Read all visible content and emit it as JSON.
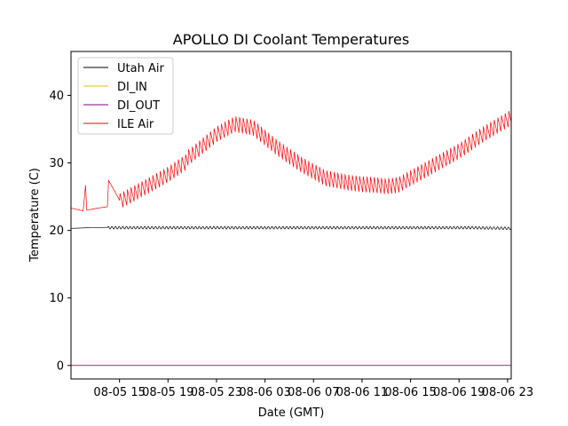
{
  "chart_data": {
    "type": "line",
    "title": "APOLLO DI Coolant Temperatures",
    "xlabel": "Date (GMT)",
    "ylabel": "Temperature (C)",
    "x_unit": "hours since 08-05 11:00 GMT",
    "xlim": [
      0,
      36.3
    ],
    "ylim": [
      -2,
      46.5
    ],
    "grid": false,
    "legend_position": "top-left",
    "x_ticks": [
      {
        "x": 4,
        "label": "08-05 15"
      },
      {
        "x": 8,
        "label": "08-05 19"
      },
      {
        "x": 12,
        "label": "08-05 23"
      },
      {
        "x": 16,
        "label": "08-06 03"
      },
      {
        "x": 20,
        "label": "08-06 07"
      },
      {
        "x": 24,
        "label": "08-06 11"
      },
      {
        "x": 28,
        "label": "08-06 15"
      },
      {
        "x": 32,
        "label": "08-06 19"
      },
      {
        "x": 36,
        "label": "08-06 23"
      }
    ],
    "y_ticks": [
      {
        "y": 0,
        "label": "0"
      },
      {
        "y": 10,
        "label": "10"
      },
      {
        "y": 20,
        "label": "20"
      },
      {
        "y": 30,
        "label": "30"
      },
      {
        "y": 40,
        "label": "40"
      }
    ],
    "series": [
      {
        "name": "Utah Air",
        "color": "#000000",
        "x": [
          0,
          1.5,
          3,
          5,
          7,
          9,
          12,
          15,
          18,
          21,
          24,
          27,
          30,
          33,
          36.3
        ],
        "values": [
          20.3,
          20.4,
          20.4,
          20.4,
          20.4,
          20.4,
          20.4,
          20.4,
          20.4,
          20.4,
          20.4,
          20.4,
          20.4,
          20.4,
          20.3
        ],
        "oscillation": {
          "start_x": 3,
          "period_hours": 0.3,
          "amplitude": 0.4
        }
      },
      {
        "name": "DI_IN",
        "color": "#e6c200",
        "x": [
          0,
          36.3
        ],
        "values": [
          0,
          0
        ]
      },
      {
        "name": "DI_OUT",
        "color": "#800080",
        "x": [
          0,
          36.3
        ],
        "values": [
          0,
          0
        ]
      },
      {
        "name": "ILE Air",
        "color": "#ff0000",
        "x": [
          0,
          1,
          1.2,
          1.3,
          2.2,
          3,
          3.1,
          4,
          6,
          8,
          10,
          12,
          13.5,
          15,
          17,
          19,
          21,
          23,
          24,
          25,
          26,
          27,
          28,
          30,
          32,
          34,
          36.3
        ],
        "values": [
          23.3,
          22.9,
          26.7,
          23.0,
          23.3,
          23.5,
          27.4,
          24.5,
          26.5,
          28.5,
          31.0,
          34.0,
          35.5,
          35.0,
          32.0,
          29.5,
          27.5,
          26.8,
          26.6,
          26.5,
          26.3,
          26.5,
          27.5,
          29.5,
          31.5,
          34.0,
          36.5
        ],
        "oscillation": {
          "start_x": 4,
          "period_hours": 0.3,
          "amplitude": 2.8,
          "shape": "sawtooth"
        }
      }
    ]
  }
}
